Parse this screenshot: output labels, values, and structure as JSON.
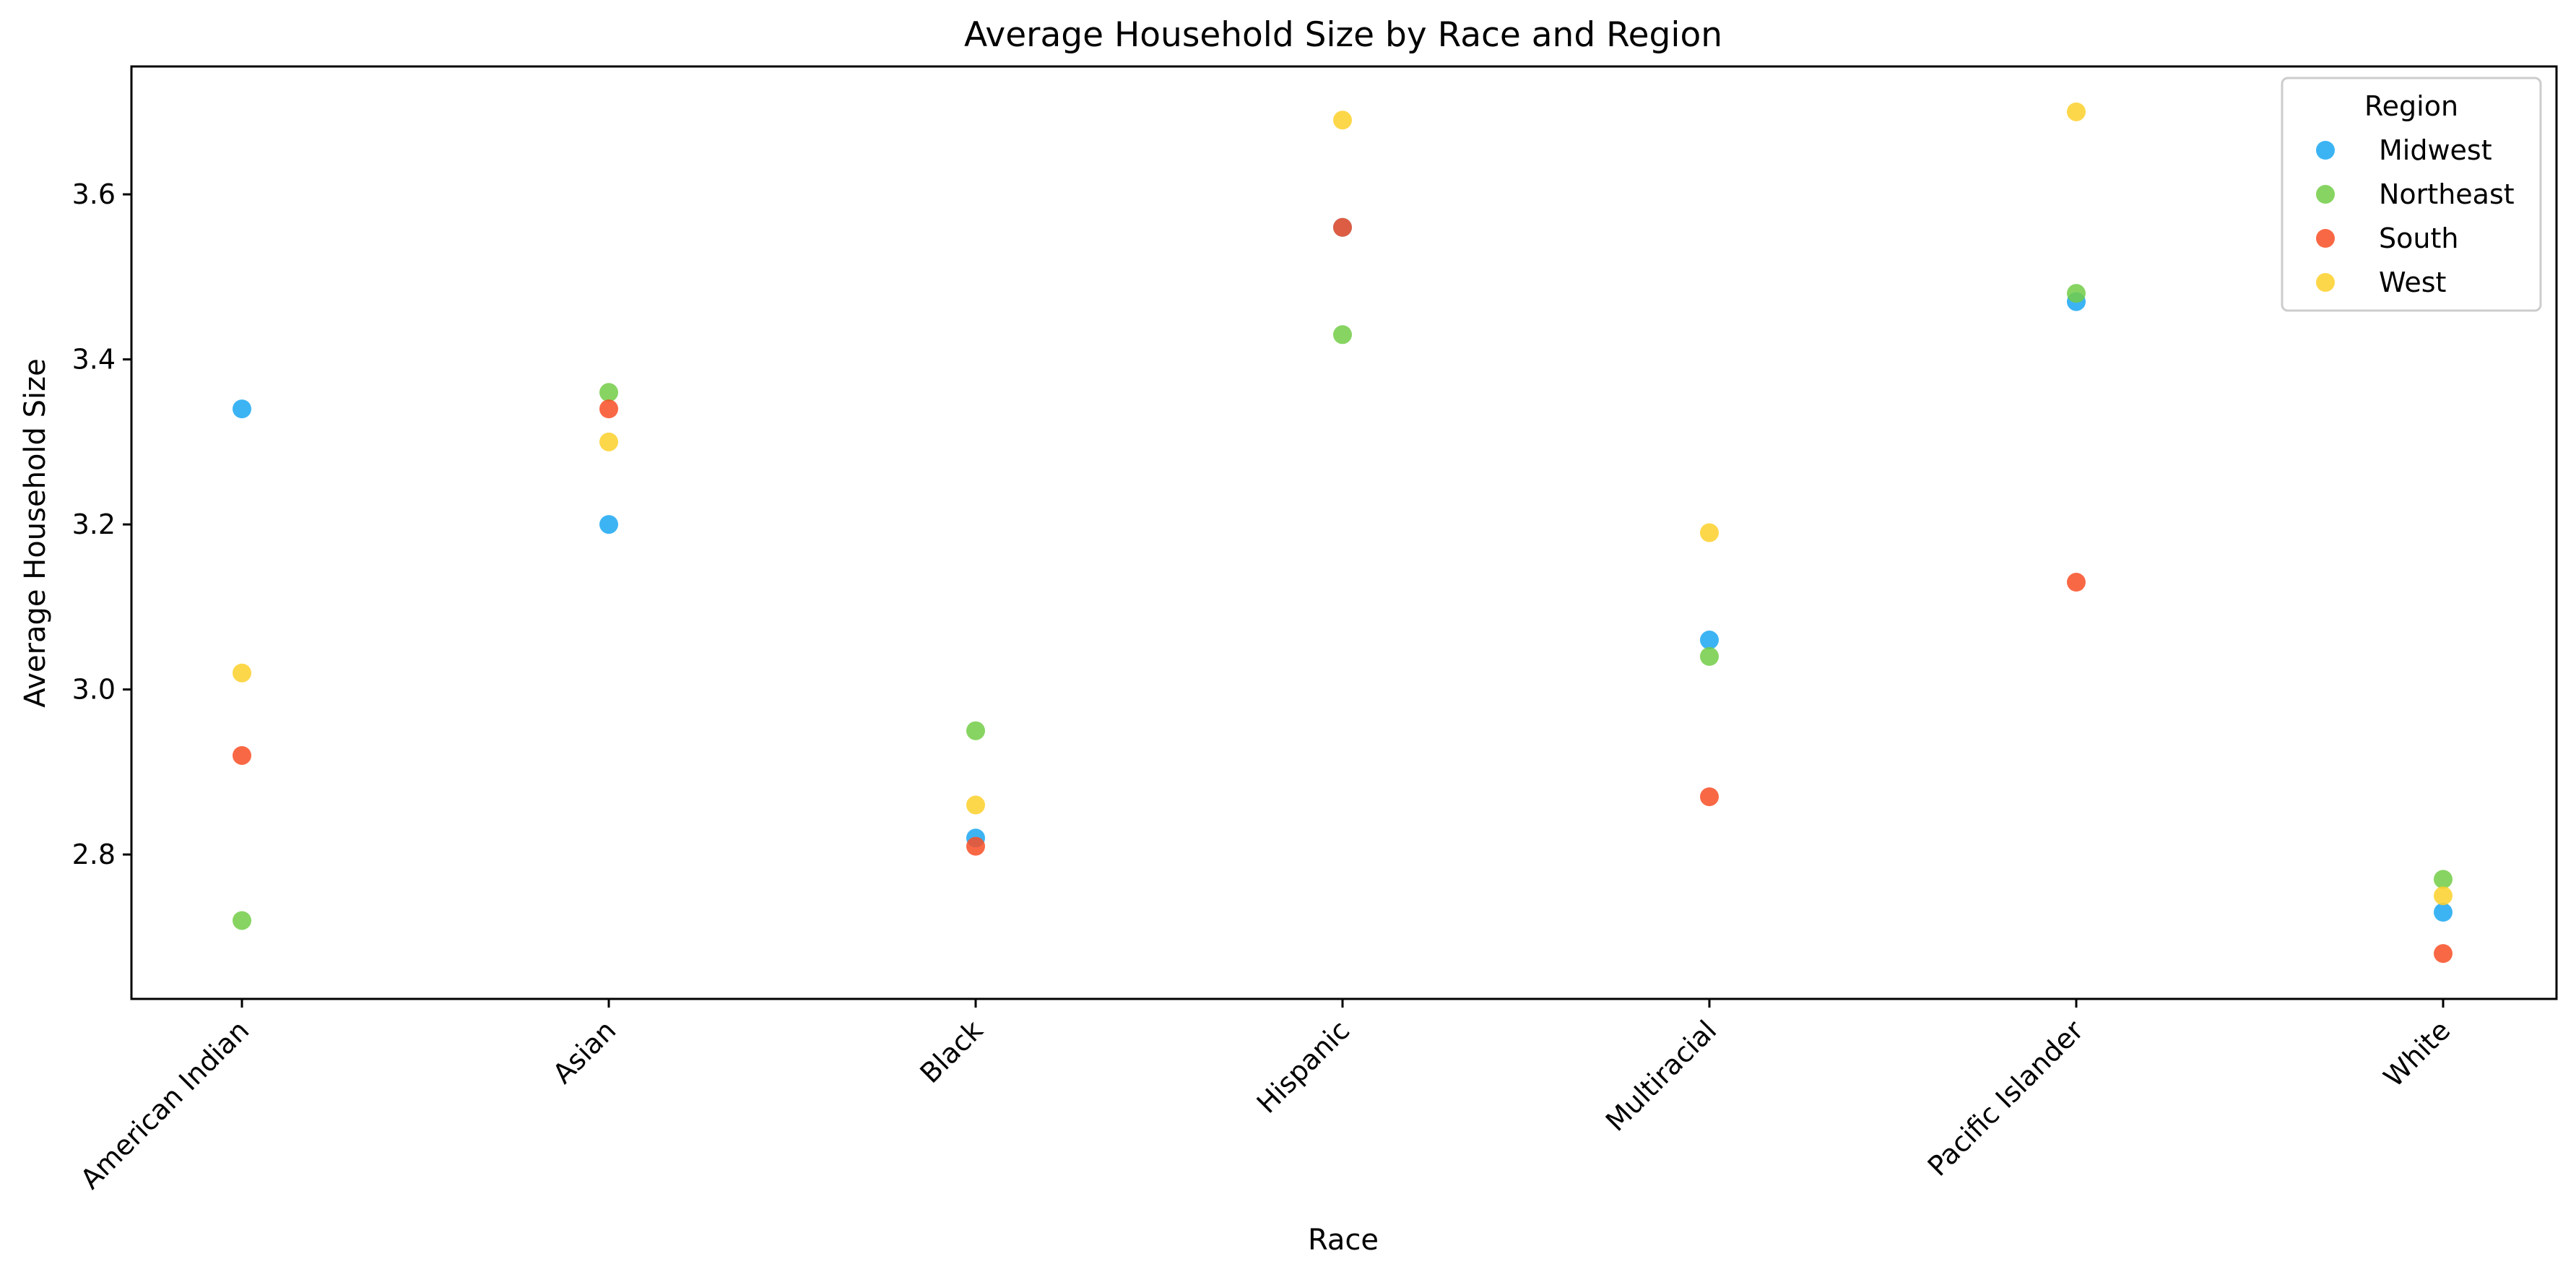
{
  "chart_data": {
    "type": "scatter",
    "title": "Average Household Size by Race and Region",
    "xlabel": "Race",
    "ylabel": "Average Household Size",
    "categories": [
      "American Indian",
      "Asian",
      "Black",
      "Hispanic",
      "Multiracial",
      "Pacific Islander",
      "White"
    ],
    "yticks": [
      "2.8",
      "3.0",
      "3.2",
      "3.4",
      "3.6"
    ],
    "ylim": [
      2.625,
      3.755
    ],
    "grid": false,
    "legend": {
      "title": "Region",
      "placement": "top-right"
    },
    "series": [
      {
        "name": "Midwest",
        "color": "#1aa7f2",
        "values": [
          3.34,
          3.2,
          2.82,
          3.56,
          3.06,
          3.47,
          2.73
        ]
      },
      {
        "name": "Northeast",
        "color": "#72cc46",
        "values": [
          2.72,
          3.36,
          2.95,
          3.43,
          3.04,
          3.48,
          2.77
        ]
      },
      {
        "name": "South",
        "color": "#f84e24",
        "values": [
          2.92,
          3.34,
          2.81,
          3.56,
          2.87,
          3.13,
          2.68
        ]
      },
      {
        "name": "West",
        "color": "#fdd02a",
        "values": [
          3.02,
          3.3,
          2.86,
          3.69,
          3.19,
          3.7,
          2.75
        ]
      }
    ]
  }
}
